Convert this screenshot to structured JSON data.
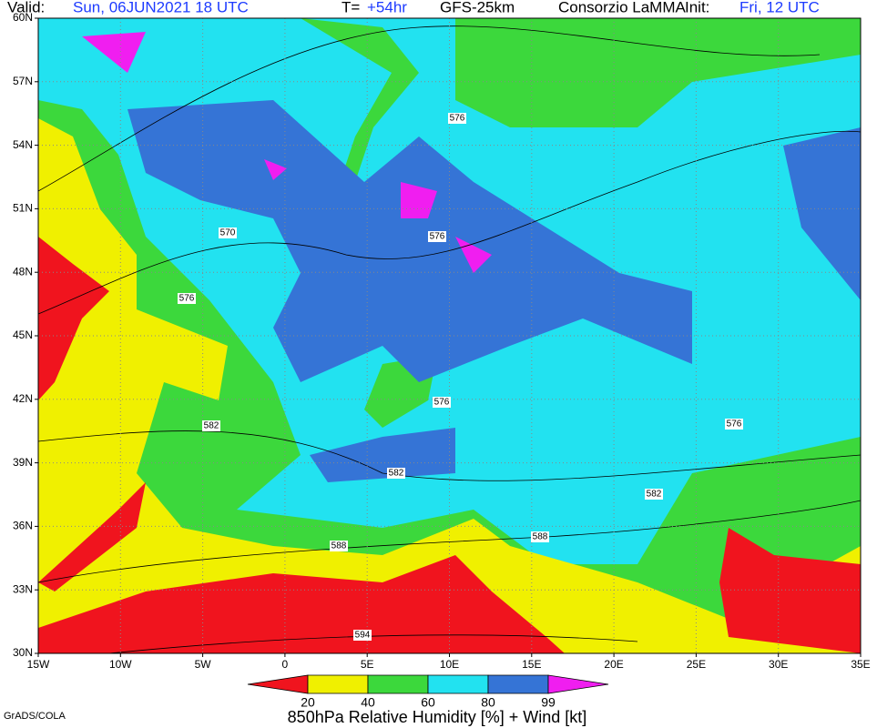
{
  "header": {
    "valid_label": "Valid:",
    "valid_time": "Sun, 06JUN2021 18 UTC",
    "step_label": "T=",
    "step": "+54hr",
    "model": "GFS-25km",
    "producer": "Consorzio LaMMA",
    "init_label": "Init:",
    "init_time": "Fri, 12 UTC"
  },
  "axes": {
    "lat_labels": [
      "60N",
      "57N",
      "54N",
      "51N",
      "48N",
      "45N",
      "42N",
      "39N",
      "36N",
      "33N",
      "30N"
    ],
    "lon_labels": [
      "15W",
      "10W",
      "5W",
      "0",
      "5E",
      "10E",
      "15E",
      "20E",
      "25E",
      "30E",
      "35E"
    ]
  },
  "contour_labels": [
    "570",
    "576",
    "576",
    "576",
    "576",
    "576",
    "582",
    "582",
    "582",
    "588",
    "588",
    "594"
  ],
  "colorbar": {
    "colors": [
      "#f0141e",
      "#f0f000",
      "#3cd83c",
      "#22e2f0",
      "#3574d6",
      "#f01ef0"
    ],
    "ticks": [
      "20",
      "40",
      "60",
      "80",
      "99"
    ],
    "title": "850hPa Relative Humidity [%] + Wind [kt]"
  },
  "footer": "GrADS/COLA"
}
